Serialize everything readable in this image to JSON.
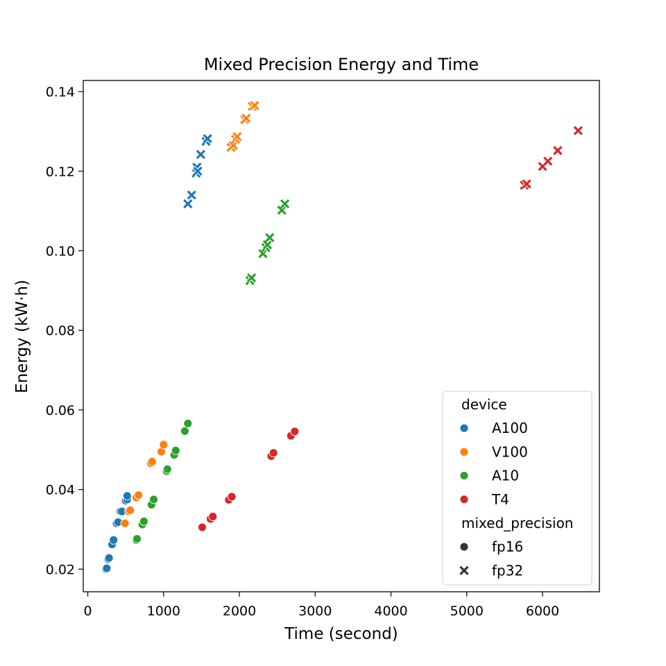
{
  "chart_data": {
    "type": "scatter",
    "title": "Mixed Precision Energy and Time",
    "xlabel": "Time (second)",
    "ylabel": "Energy (kW·h)",
    "xlim": [
      -60,
      6750
    ],
    "ylim": [
      0.0143,
      0.1428
    ],
    "xticks": [
      0,
      1000,
      2000,
      3000,
      4000,
      5000,
      6000
    ],
    "yticks": [
      0.02,
      0.04,
      0.06,
      0.08,
      0.1,
      0.12,
      0.14
    ],
    "xtick_labels": [
      "0",
      "1000",
      "2000",
      "3000",
      "4000",
      "5000",
      "6000"
    ],
    "ytick_labels": [
      "0.02",
      "0.04",
      "0.06",
      "0.08",
      "0.10",
      "0.12",
      "0.14"
    ],
    "grid": false,
    "legend_position": "lower-right",
    "legend": {
      "hue_title": "device",
      "style_title": "mixed_precision",
      "devices": [
        {
          "name": "A100",
          "color": "#1f77b4"
        },
        {
          "name": "V100",
          "color": "#ff7f0e"
        },
        {
          "name": "A10",
          "color": "#2ca02c"
        },
        {
          "name": "T4",
          "color": "#d62728"
        }
      ],
      "markers": [
        {
          "name": "fp16",
          "shape": "circle"
        },
        {
          "name": "fp32",
          "shape": "x"
        }
      ]
    },
    "series": [
      {
        "device": "A100",
        "mixed_precision": "fp16",
        "points": [
          [
            240,
            0.02
          ],
          [
            250,
            0.0202
          ],
          [
            270,
            0.0225
          ],
          [
            280,
            0.0228
          ],
          [
            320,
            0.0262
          ],
          [
            340,
            0.0273
          ],
          [
            380,
            0.0315
          ],
          [
            400,
            0.0318
          ],
          [
            430,
            0.0345
          ],
          [
            450,
            0.0345
          ],
          [
            500,
            0.0372
          ],
          [
            520,
            0.0375
          ],
          [
            520,
            0.0384
          ]
        ]
      },
      {
        "device": "A100",
        "mixed_precision": "fp32",
        "points": [
          [
            1320,
            0.1118
          ],
          [
            1370,
            0.114
          ],
          [
            1430,
            0.1195
          ],
          [
            1440,
            0.121
          ],
          [
            1450,
            0.12
          ],
          [
            1490,
            0.1242
          ],
          [
            1560,
            0.1275
          ],
          [
            1580,
            0.1282
          ]
        ]
      },
      {
        "device": "V100",
        "mixed_precision": "fp16",
        "points": [
          [
            490,
            0.0315
          ],
          [
            540,
            0.0345
          ],
          [
            560,
            0.0348
          ],
          [
            640,
            0.038
          ],
          [
            670,
            0.0386
          ],
          [
            830,
            0.0466
          ],
          [
            850,
            0.047
          ],
          [
            970,
            0.0495
          ],
          [
            1000,
            0.0513
          ]
        ]
      },
      {
        "device": "V100",
        "mixed_precision": "fp32",
        "points": [
          [
            1890,
            0.126
          ],
          [
            1920,
            0.1265
          ],
          [
            1950,
            0.128
          ],
          [
            1970,
            0.1287
          ],
          [
            2070,
            0.133
          ],
          [
            2090,
            0.1333
          ],
          [
            2170,
            0.1363
          ],
          [
            2200,
            0.1365
          ]
        ]
      },
      {
        "device": "A10",
        "mixed_precision": "fp16",
        "points": [
          [
            640,
            0.0273
          ],
          [
            650,
            0.0276
          ],
          [
            720,
            0.0312
          ],
          [
            740,
            0.032
          ],
          [
            840,
            0.0362
          ],
          [
            870,
            0.0375
          ],
          [
            1040,
            0.0446
          ],
          [
            1050,
            0.0451
          ],
          [
            1140,
            0.0487
          ],
          [
            1160,
            0.0498
          ],
          [
            1280,
            0.0547
          ],
          [
            1320,
            0.0566
          ]
        ]
      },
      {
        "device": "A10",
        "mixed_precision": "fp32",
        "points": [
          [
            2140,
            0.0925
          ],
          [
            2160,
            0.0932
          ],
          [
            2310,
            0.0993
          ],
          [
            2350,
            0.1008
          ],
          [
            2370,
            0.1015
          ],
          [
            2400,
            0.1033
          ],
          [
            2560,
            0.1102
          ],
          [
            2600,
            0.1118
          ]
        ]
      },
      {
        "device": "T4",
        "mixed_precision": "fp16",
        "points": [
          [
            1510,
            0.0305
          ],
          [
            1620,
            0.0326
          ],
          [
            1650,
            0.0332
          ],
          [
            1860,
            0.0374
          ],
          [
            1900,
            0.0382
          ],
          [
            2420,
            0.0484
          ],
          [
            2450,
            0.0492
          ],
          [
            2680,
            0.0535
          ],
          [
            2730,
            0.0546
          ]
        ]
      },
      {
        "device": "T4",
        "mixed_precision": "fp32",
        "points": [
          [
            5760,
            0.1165
          ],
          [
            5790,
            0.1168
          ],
          [
            6000,
            0.1212
          ],
          [
            6070,
            0.1225
          ],
          [
            6200,
            0.1252
          ],
          [
            6470,
            0.1302
          ]
        ]
      }
    ]
  }
}
